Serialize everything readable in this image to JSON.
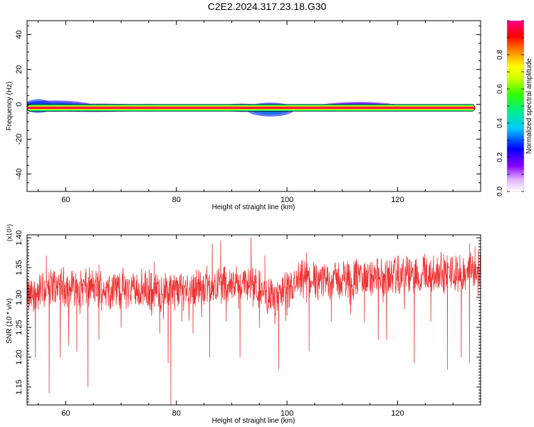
{
  "figure": {
    "title": "C2E2.2024.317.23.18.G30"
  },
  "chart_data": [
    {
      "type": "heatmap",
      "xlabel": "Height of straight line (km)",
      "ylabel": "Frequency (Hz)",
      "xlim": [
        53,
        135
      ],
      "ylim": [
        -50,
        48
      ],
      "xticks": [
        60,
        80,
        100,
        120
      ],
      "yticks": [
        -40,
        -20,
        0,
        20,
        40
      ],
      "colorbar": {
        "label": "Normalized spectral amplitude",
        "range": [
          0,
          1
        ],
        "ticks": [
          "0.0",
          "0.2",
          "0.4",
          "0.6",
          "0.8"
        ]
      },
      "ridge": {
        "frequency": -2,
        "x_start": 53,
        "x_end": 134
      },
      "blobs": [
        {
          "x": 55,
          "f": -1,
          "wx": 1.5,
          "wf": 2.5,
          "amp": 0.5
        },
        {
          "x": 58,
          "f": -1,
          "wx": 4,
          "wf": 2,
          "amp": 0.35
        },
        {
          "x": 65,
          "f": -2,
          "wx": 6,
          "wf": 1.5,
          "amp": 0.25
        },
        {
          "x": 75,
          "f": -2,
          "wx": 3,
          "wf": 1.2,
          "amp": 0.15
        },
        {
          "x": 92,
          "f": -2,
          "wx": 2,
          "wf": 1.5,
          "amp": 0.2
        },
        {
          "x": 97,
          "f": -3,
          "wx": 2.5,
          "wf": 2.5,
          "amp": 0.45
        },
        {
          "x": 113,
          "f": -1,
          "wx": 4,
          "wf": 1.5,
          "amp": 0.2
        }
      ]
    },
    {
      "type": "line",
      "xlabel": "Height of straight line (km)",
      "ylabel": "SNR (10 * v/v)",
      "scale_label": "(x10⁴)",
      "xlim": [
        53,
        135
      ],
      "ylim": [
        1.12,
        1.405
      ],
      "xticks": [
        60,
        80,
        100,
        120
      ],
      "yticks": [
        "1.15",
        "1.20",
        "1.25",
        "1.30",
        "1.35",
        "1.40"
      ],
      "color": "#ee3333",
      "baseline": [
        [
          53,
          1.3
        ],
        [
          58,
          1.32
        ],
        [
          65,
          1.315
        ],
        [
          72,
          1.315
        ],
        [
          78,
          1.31
        ],
        [
          85,
          1.32
        ],
        [
          92,
          1.325
        ],
        [
          98,
          1.3
        ],
        [
          100,
          1.31
        ],
        [
          103,
          1.33
        ],
        [
          110,
          1.33
        ],
        [
          120,
          1.335
        ],
        [
          127,
          1.34
        ],
        [
          135,
          1.345
        ]
      ],
      "dips": [
        [
          54.5,
          1.2
        ],
        [
          57,
          1.14
        ],
        [
          59,
          1.2
        ],
        [
          60.5,
          1.22
        ],
        [
          62,
          1.21
        ],
        [
          64,
          1.15
        ],
        [
          66,
          1.23
        ],
        [
          70,
          1.25
        ],
        [
          75.5,
          1.27
        ],
        [
          77,
          1.24
        ],
        [
          78.5,
          1.19
        ],
        [
          79,
          1.12
        ],
        [
          81,
          1.26
        ],
        [
          83,
          1.24
        ],
        [
          86,
          1.2
        ],
        [
          89,
          1.26
        ],
        [
          91.5,
          1.2
        ],
        [
          95,
          1.25
        ],
        [
          98.5,
          1.18
        ],
        [
          100,
          1.27
        ],
        [
          104,
          1.21
        ],
        [
          108,
          1.26
        ],
        [
          114,
          1.26
        ],
        [
          116.5,
          1.23
        ],
        [
          118,
          1.23
        ],
        [
          123,
          1.19
        ],
        [
          126,
          1.26
        ],
        [
          129,
          1.18
        ],
        [
          131.5,
          1.2
        ],
        [
          133,
          1.19
        ]
      ],
      "peaks": [
        [
          56.5,
          1.37
        ],
        [
          66,
          1.355
        ],
        [
          76,
          1.36
        ],
        [
          86.5,
          1.39
        ],
        [
          88,
          1.395
        ],
        [
          93.5,
          1.4
        ],
        [
          96,
          1.37
        ],
        [
          103.5,
          1.375
        ],
        [
          111,
          1.36
        ],
        [
          112.5,
          1.365
        ],
        [
          121,
          1.365
        ],
        [
          126.5,
          1.37
        ],
        [
          133,
          1.39
        ],
        [
          134,
          1.385
        ]
      ]
    }
  ]
}
